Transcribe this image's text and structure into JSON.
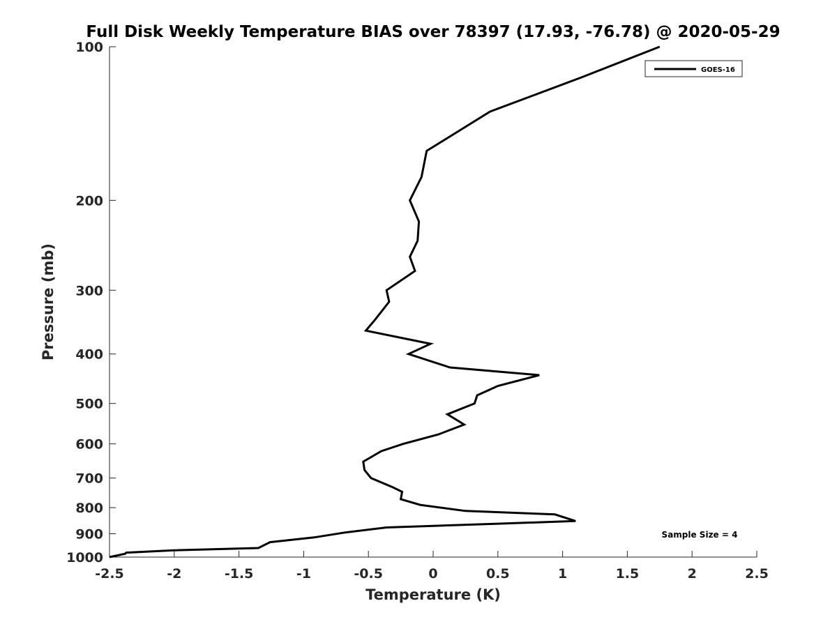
{
  "chart_data": {
    "type": "line",
    "title": "Full Disk Weekly Temperature BIAS over 78397 (17.93, -76.78) @ 2020-05-29",
    "xlabel": "Temperature (K)",
    "ylabel": "Pressure (mb)",
    "xlim": [
      -2.5,
      2.5
    ],
    "ylim": [
      100,
      1000
    ],
    "y_scale": "log",
    "y_reversed": true,
    "x_ticks": [
      -2.5,
      -2,
      -1.5,
      -1,
      -0.5,
      0,
      0.5,
      1,
      1.5,
      2,
      2.5
    ],
    "x_tick_labels": [
      "-2.5",
      "-2",
      "-1.5",
      "-1",
      "-0.5",
      "0",
      "0.5",
      "1",
      "1.5",
      "2",
      "2.5"
    ],
    "y_ticks": [
      100,
      200,
      300,
      400,
      500,
      600,
      700,
      800,
      900,
      1000
    ],
    "y_tick_labels": [
      "100",
      "200",
      "300",
      "400",
      "500",
      "600",
      "700",
      "800",
      "900",
      "1000"
    ],
    "grid": false,
    "legend_position": "top-right",
    "annotation": "Sample Size = 4",
    "series": [
      {
        "name": "GOES-16",
        "color": "#000000",
        "x": [
          1.75,
          1.14,
          0.44,
          -0.05,
          -0.09,
          -0.18,
          -0.11,
          -0.12,
          -0.18,
          -0.14,
          -0.36,
          -0.34,
          -0.45,
          -0.52,
          -0.02,
          -0.19,
          0.13,
          0.82,
          0.5,
          0.34,
          0.32,
          0.11,
          0.24,
          0.04,
          -0.23,
          -0.4,
          -0.54,
          -0.53,
          -0.48,
          -0.31,
          -0.24,
          -0.25,
          -0.1,
          0.25,
          0.94,
          1.1,
          0.5,
          -0.36,
          -0.68,
          -0.92,
          -1.26,
          -1.35,
          -2.0,
          -2.37,
          -2.38,
          -2.5
        ],
        "y": [
          100,
          115,
          134,
          160,
          180,
          200,
          220,
          240,
          258,
          275,
          300,
          316,
          343,
          360,
          382,
          400,
          425,
          440,
          462,
          482,
          500,
          525,
          550,
          575,
          600,
          620,
          650,
          675,
          700,
          730,
          745,
          770,
          790,
          812,
          825,
          850,
          860,
          875,
          895,
          915,
          935,
          960,
          970,
          980,
          985,
          1000
        ]
      }
    ]
  }
}
